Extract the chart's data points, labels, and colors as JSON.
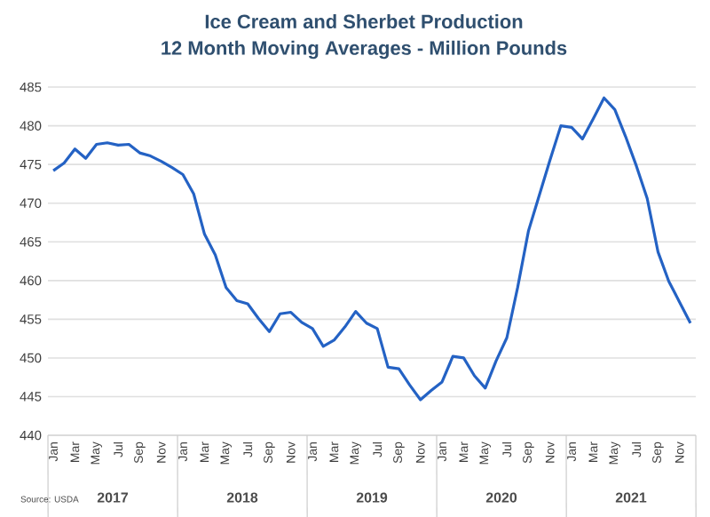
{
  "chart_data": {
    "type": "line",
    "title": "Ice Cream and Sherbet Production",
    "subtitle": "12 Month Moving Averages - Million Pounds",
    "categories": [
      "Jan",
      null,
      "Mar",
      null,
      "May",
      null,
      "Jul",
      null,
      "Sep",
      null,
      "Nov",
      null,
      "Jan",
      null,
      "Mar",
      null,
      "May",
      null,
      "Jul",
      null,
      "Sep",
      null,
      "Nov",
      null,
      "Jan",
      null,
      "Mar",
      null,
      "May",
      null,
      "Jul",
      null,
      "Sep",
      null,
      "Nov",
      null,
      "Jan",
      null,
      "Mar",
      null,
      "May",
      null,
      "Jul",
      null,
      "Sep",
      null,
      "Nov",
      null,
      "Jan",
      null,
      "Mar",
      null,
      "May",
      null,
      "Jul",
      null,
      "Sep",
      null,
      "Nov",
      null
    ],
    "series": [
      {
        "color": "#2462c4",
        "values": [
          474.2,
          475.2,
          477.0,
          475.8,
          477.6,
          477.8,
          477.5,
          477.6,
          476.5,
          476.1,
          475.4,
          474.6,
          473.7,
          471.2,
          466.0,
          463.3,
          459.1,
          457.4,
          457.0,
          455.1,
          453.4,
          455.7,
          455.9,
          454.6,
          453.8,
          451.5,
          452.3,
          454.0,
          456.0,
          454.5,
          453.8,
          448.8,
          448.6,
          446.5,
          444.6,
          445.8,
          446.9,
          450.2,
          450.0,
          447.7,
          446.1,
          449.6,
          452.6,
          459.1,
          466.4,
          471.0,
          475.6,
          480.0,
          479.8,
          478.3,
          480.9,
          483.6,
          482.1,
          478.6,
          474.8,
          470.6,
          463.7,
          459.9,
          457.2,
          454.5
        ]
      }
    ],
    "ylim": [
      440,
      485
    ],
    "yticks": [
      440,
      445,
      450,
      455,
      460,
      465,
      470,
      475,
      480,
      485
    ],
    "grid": "y",
    "marker": "none",
    "line_style": "solid",
    "annotations": [
      "2017",
      "2018",
      "2019",
      "2020",
      "2021",
      "Source: USDA"
    ]
  }
}
